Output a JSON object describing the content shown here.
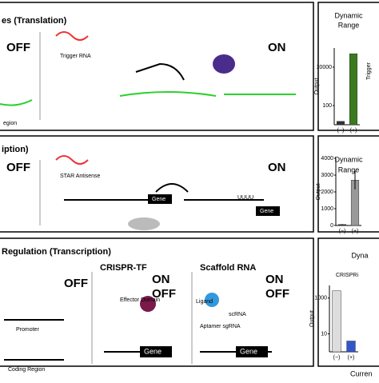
{
  "panels": [
    {
      "title": "es (Translation)",
      "labels": [
        "OFF",
        "Trigger RNA",
        "ON",
        "egion"
      ],
      "side": {
        "title": [
          "Dynamic",
          "Range"
        ],
        "extra": "Trigger"
      }
    },
    {
      "title": "iption)",
      "labels": [
        "OFF",
        "STAR Antisense",
        "ON",
        "Gene",
        "UUUU",
        "Gene"
      ],
      "side": {
        "title": [
          "Dynamic",
          "Range"
        ]
      }
    },
    {
      "title": "Regulation (Transcription)",
      "subtitles": [
        "CRISPR-TF",
        "Scaffold RNA"
      ],
      "labels": [
        "OFF",
        "Promoter",
        "Coding Region",
        "Effector Domain",
        "ON",
        "OFF",
        "Ligand",
        "scRNA",
        "Aptamer sgRNA",
        "ON",
        "OFF",
        "Gene",
        "Gene"
      ],
      "side": {
        "title": [
          "Dyna"
        ],
        "extra": "CRISPRi"
      }
    }
  ],
  "footer": "Curren",
  "charts": [
    {
      "type": "bar",
      "ylabel": "Output",
      "categories": [
        "(−)",
        "(+)"
      ],
      "values": [
        15,
        50000
      ],
      "colors": [
        "#333333",
        "#3a7a1e"
      ],
      "log": true,
      "ylim": [
        10,
        100000
      ],
      "yticks": [
        {
          "value": 100,
          "label": "100"
        },
        {
          "value": 10000,
          "label": "10000"
        }
      ]
    },
    {
      "type": "bar",
      "ylabel": "Output",
      "categories": [
        "(−)",
        "(+)"
      ],
      "values": [
        60,
        2700
      ],
      "errors": [
        20,
        550
      ],
      "colors": [
        "#333333",
        "#999999"
      ],
      "log": false,
      "ylim": [
        0,
        4000
      ],
      "yticks": [
        0,
        1000,
        2000,
        3000,
        4000
      ]
    },
    {
      "type": "bar",
      "ylabel": "Output",
      "categories": [
        "(−)",
        "(+)"
      ],
      "values": [
        2500,
        4
      ],
      "colors": [
        "#dddddd",
        "#3355cc"
      ],
      "log": true,
      "ylim": [
        1,
        5000
      ],
      "yticks": [
        10,
        1000
      ]
    }
  ]
}
